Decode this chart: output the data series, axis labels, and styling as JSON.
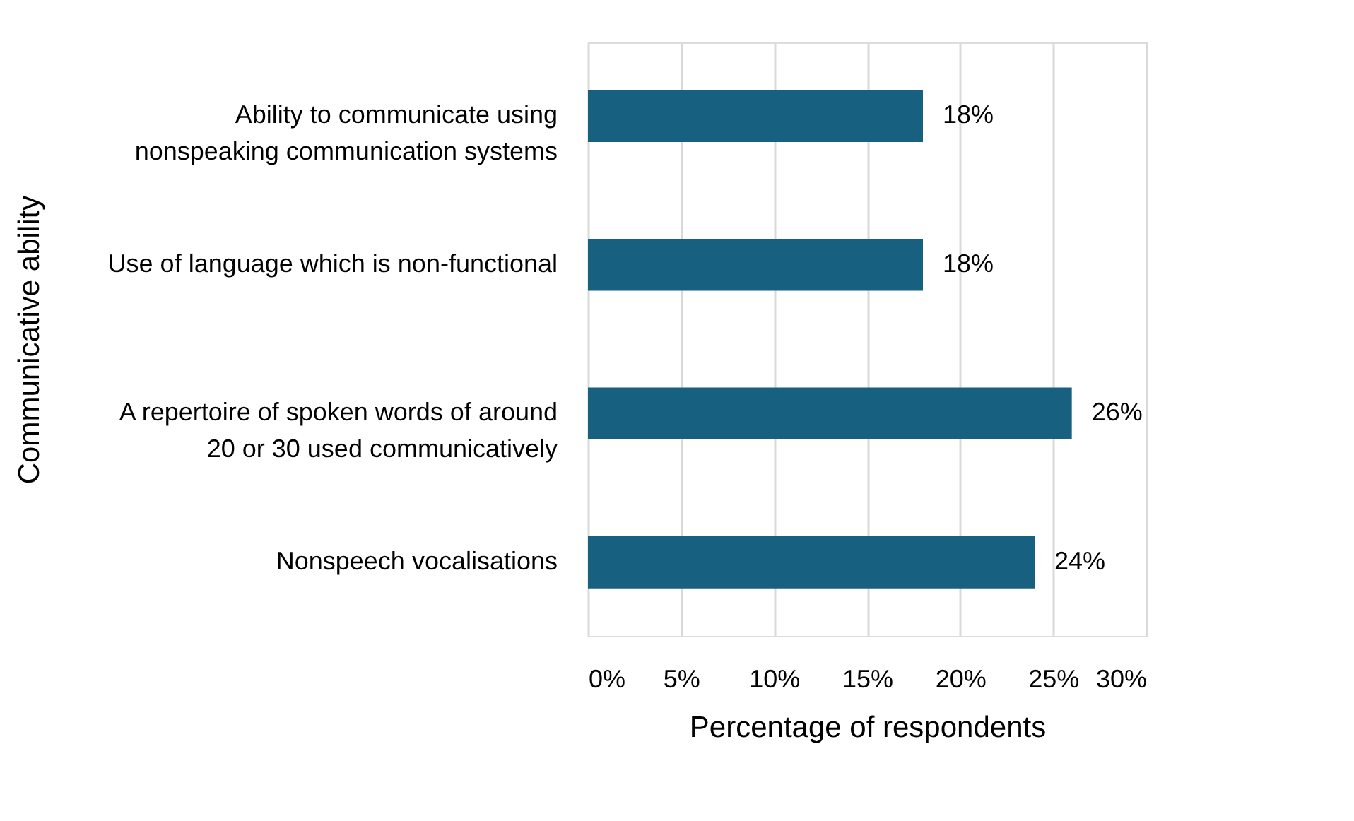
{
  "chart_data": {
    "type": "bar",
    "orientation": "horizontal",
    "categories": [
      "Ability to communicate using nonspeaking communication systems",
      "Use of language which is non-functional",
      "A repertoire of spoken words of around 20 or 30 used communicatively",
      "Nonspeech vocalisations"
    ],
    "values": [
      18,
      18,
      26,
      24
    ],
    "color": "#17607f",
    "xlabel": "Percentage of respondents",
    "ylabel": "Communicative ability",
    "xlim": [
      0,
      30
    ],
    "xticks": [
      {
        "value": 0,
        "label": "0%"
      },
      {
        "value": 5,
        "label": "5%"
      },
      {
        "value": 10,
        "label": "10%"
      },
      {
        "value": 15,
        "label": "15%"
      },
      {
        "value": 20,
        "label": "20%"
      },
      {
        "value": 25,
        "label": "25%"
      },
      {
        "value": 30,
        "label": "30%"
      }
    ],
    "value_labels": [
      "18%",
      "18%",
      "26%",
      "24%"
    ],
    "grid": "x"
  }
}
